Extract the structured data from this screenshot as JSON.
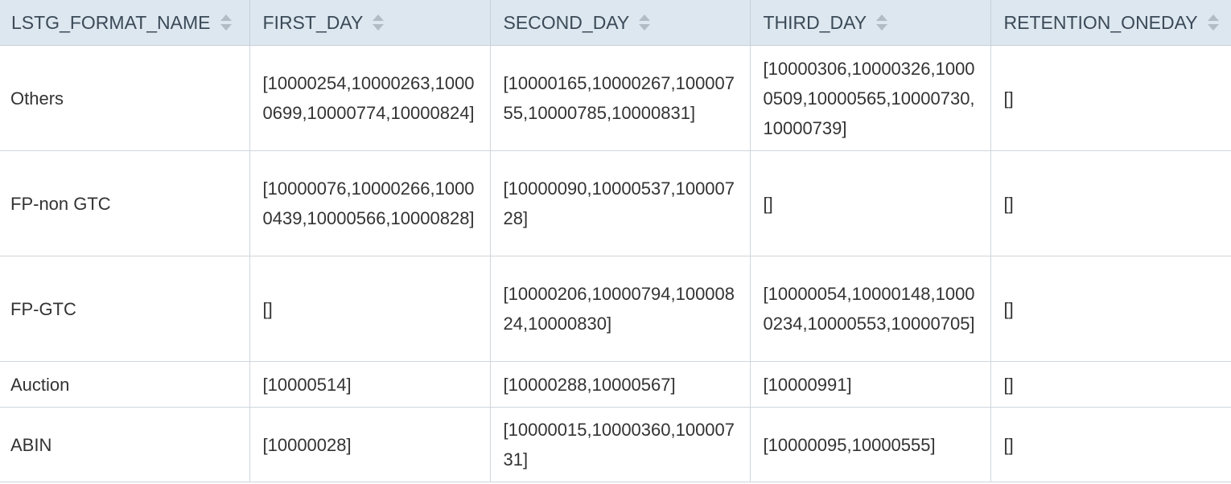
{
  "table": {
    "columns": [
      "LSTG_FORMAT_NAME",
      "FIRST_DAY",
      "SECOND_DAY",
      "THIRD_DAY",
      "RETENTION_ONEDAY"
    ],
    "rows": [
      [
        "Others",
        "[10000254,10000263,10000699,10000774,10000824]",
        "[10000165,10000267,10000755,10000785,10000831]",
        "[10000306,10000326,10000509,10000565,10000730,10000739]",
        "[]"
      ],
      [
        "FP-non GTC",
        "[10000076,10000266,10000439,10000566,10000828]",
        "[10000090,10000537,10000728]",
        "[]",
        "[]"
      ],
      [
        "FP-GTC",
        "[]",
        "[10000206,10000794,10000824,10000830]",
        "[10000054,10000148,10000234,10000553,10000705]",
        "[]"
      ],
      [
        "Auction",
        "[10000514]",
        "[10000288,10000567]",
        "[10000991]",
        "[]"
      ],
      [
        "ABIN",
        "[10000028]",
        "[10000015,10000360,10000731]",
        "[10000095,10000555]",
        "[]"
      ]
    ]
  },
  "icons": {
    "sort": "sort-icon"
  },
  "colors": {
    "header_bg": "#dde7ef",
    "header_text": "#3b4a58",
    "border": "#cfd6dc",
    "sort_icon": "#b3bcc5"
  }
}
